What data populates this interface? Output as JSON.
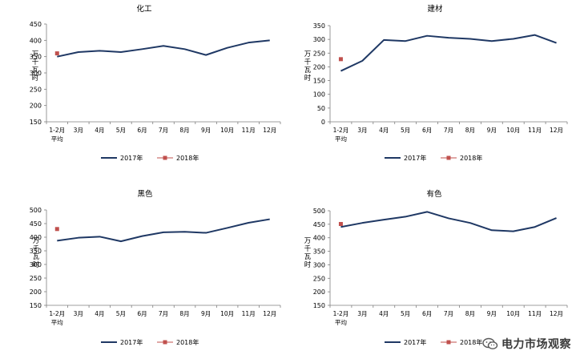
{
  "ylabel_text": "万千瓦时",
  "watermark": {
    "text": "电力市场观察",
    "icon": "wechat-icon"
  },
  "colors": {
    "line2017": "#1f3864",
    "marker2018": "#c0504d",
    "axis": "#7f7f7f"
  },
  "chart_data": [
    {
      "type": "line",
      "title": "化工",
      "ylabel": "万千瓦时",
      "categories": [
        "1-2月平均",
        "3月",
        "4月",
        "5月",
        "6月",
        "7月",
        "8月",
        "9月",
        "10月",
        "11月",
        "12月"
      ],
      "ylim": [
        150,
        450
      ],
      "yticks": [
        150,
        200,
        250,
        300,
        350,
        400,
        450
      ],
      "series": [
        {
          "name": "2017年",
          "values": [
            350,
            364,
            368,
            364,
            373,
            383,
            373,
            355,
            377,
            393,
            400
          ]
        },
        {
          "name": "2018年",
          "values": [
            360,
            null,
            null,
            null,
            null,
            null,
            null,
            null,
            null,
            null,
            null
          ]
        }
      ]
    },
    {
      "type": "line",
      "title": "建材",
      "ylabel": "万千瓦时",
      "categories": [
        "1-2月平均",
        "3月",
        "4月",
        "5月",
        "6月",
        "7月",
        "8月",
        "9月",
        "10月",
        "11月",
        "12月"
      ],
      "ylim": [
        0,
        350
      ],
      "yticks": [
        0,
        50,
        100,
        150,
        200,
        250,
        300,
        350
      ],
      "series": [
        {
          "name": "2017年",
          "values": [
            185,
            222,
            298,
            294,
            313,
            306,
            302,
            294,
            302,
            316,
            287
          ]
        },
        {
          "name": "2018年",
          "values": [
            228,
            null,
            null,
            null,
            null,
            null,
            null,
            null,
            null,
            null,
            null
          ]
        }
      ]
    },
    {
      "type": "line",
      "title": "黑色",
      "ylabel": "万千瓦时",
      "categories": [
        "1-2月平均",
        "3月",
        "4月",
        "5月",
        "6月",
        "7月",
        "8月",
        "9月",
        "10月",
        "11月",
        "12月"
      ],
      "ylim": [
        150,
        500
      ],
      "yticks": [
        150,
        200,
        250,
        300,
        350,
        400,
        450,
        500
      ],
      "series": [
        {
          "name": "2017年",
          "values": [
            387,
            398,
            402,
            385,
            404,
            418,
            420,
            416,
            434,
            453,
            466
          ]
        },
        {
          "name": "2018年",
          "values": [
            430,
            null,
            null,
            null,
            null,
            null,
            null,
            null,
            null,
            null,
            null
          ]
        }
      ]
    },
    {
      "type": "line",
      "title": "有色",
      "ylabel": "万千瓦时",
      "categories": [
        "1-2月平均",
        "3月",
        "4月",
        "5月",
        "6月",
        "7月",
        "8月",
        "9月",
        "10月",
        "11月",
        "12月"
      ],
      "ylim": [
        150,
        500
      ],
      "yticks": [
        150,
        200,
        250,
        300,
        350,
        400,
        450,
        500
      ],
      "series": [
        {
          "name": "2017年",
          "values": [
            440,
            455,
            467,
            478,
            496,
            472,
            455,
            428,
            424,
            440,
            473
          ]
        },
        {
          "name": "2018年",
          "values": [
            451,
            null,
            null,
            null,
            null,
            null,
            null,
            null,
            null,
            null,
            null
          ]
        }
      ]
    }
  ]
}
